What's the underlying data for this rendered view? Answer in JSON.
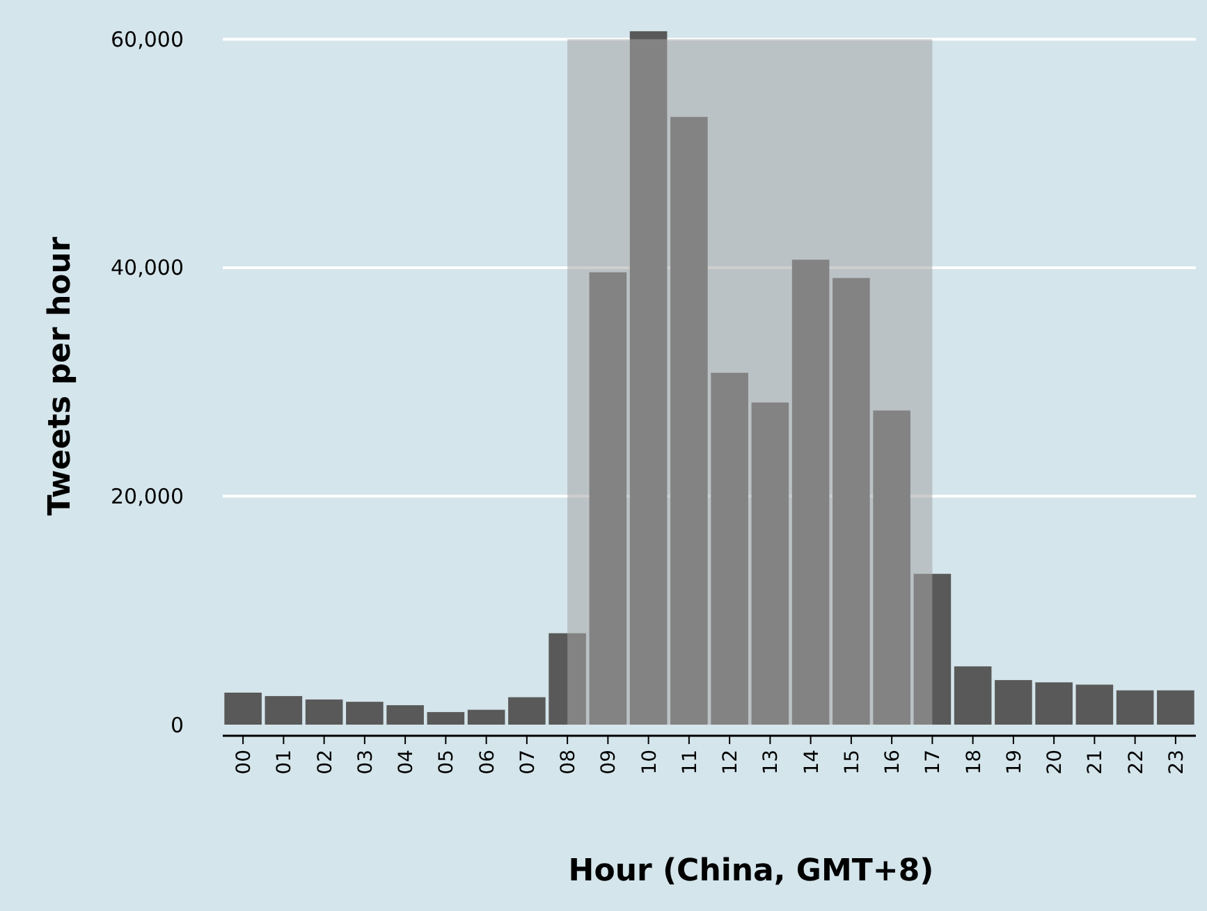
{
  "chart_data": {
    "type": "bar",
    "xlabel": "Hour (China, GMT+8)",
    "ylabel": "Tweets per hour",
    "categories": [
      "00",
      "01",
      "02",
      "03",
      "04",
      "05",
      "06",
      "07",
      "08",
      "09",
      "10",
      "11",
      "12",
      "13",
      "14",
      "15",
      "16",
      "17",
      "18",
      "19",
      "20",
      "21",
      "22",
      "23"
    ],
    "values": [
      2800,
      2500,
      2200,
      2000,
      1700,
      1100,
      1300,
      2400,
      8000,
      39600,
      60700,
      53200,
      30800,
      28200,
      40700,
      39100,
      27500,
      13200,
      5100,
      3900,
      3700,
      3500,
      3000,
      3000
    ],
    "color": "#595959",
    "ylim": [
      0,
      61000
    ],
    "yticks": [
      0,
      {
        "value": 20000,
        "label": "20,000"
      },
      {
        "value": 40000,
        "label": "40,000"
      },
      {
        "value": 60000,
        "label": "60,000"
      }
    ],
    "grid": "y",
    "bands": [
      {
        "axis": "x",
        "from": "08",
        "to": "17",
        "color": "#a6a6a6"
      }
    ]
  }
}
